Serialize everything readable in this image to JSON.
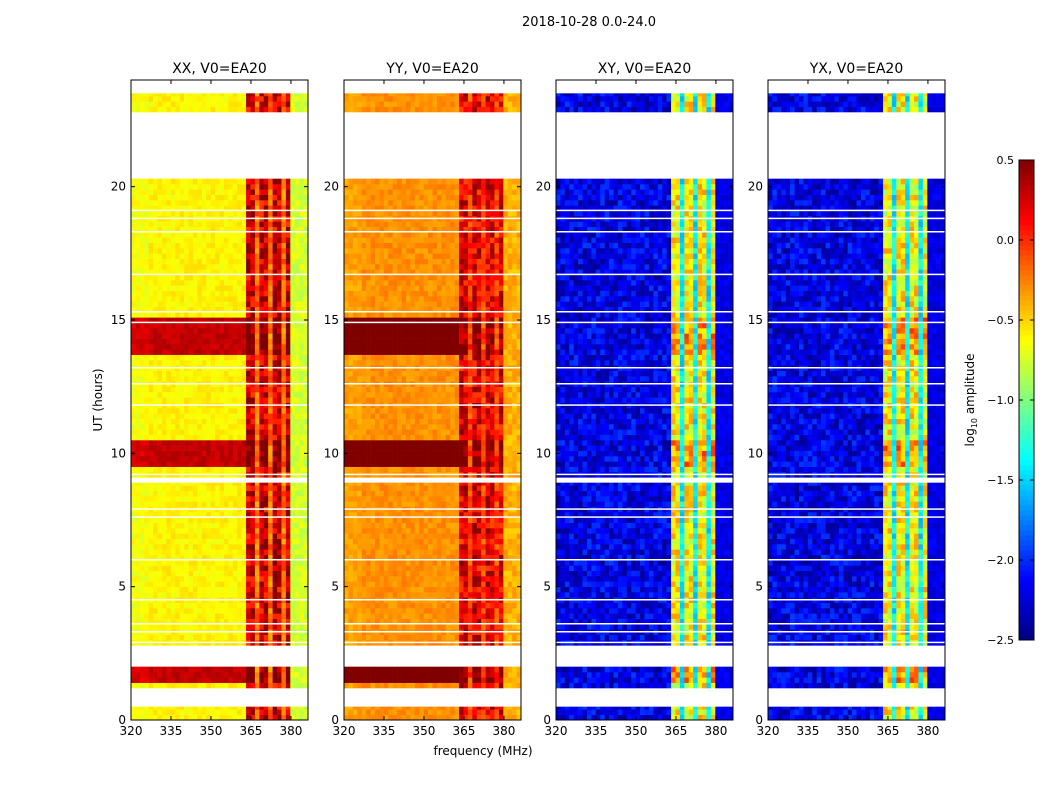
{
  "chart_data": {
    "type": "heatmap",
    "title": "2018-10-28 0.0-24.0",
    "xlabel": "frequency (MHz)",
    "ylabel": "UT (hours)",
    "xlim": [
      320,
      386.4
    ],
    "ylim": [
      0,
      24
    ],
    "xticks": [
      320,
      335,
      350,
      365,
      380
    ],
    "yticks": [
      0,
      5,
      10,
      15,
      20
    ],
    "colorbar": {
      "label": "log10 amplitude",
      "label_main": "log",
      "label_sub": "10",
      "label_rest": " amplitude",
      "colormap": "jet",
      "range": [
        -2.5,
        0.5
      ],
      "ticks": [
        "0.5",
        "0.0",
        "−0.5",
        "−1.0",
        "−1.5",
        "−2.0",
        "−2.5"
      ],
      "tick_values": [
        0.5,
        0.0,
        -0.5,
        -1.0,
        -1.5,
        -2.0,
        -2.5
      ]
    },
    "data_time_segments_hours": [
      [
        0.0,
        0.5
      ],
      [
        1.2,
        2.0
      ],
      [
        2.8,
        8.9
      ],
      [
        9.1,
        20.3
      ],
      [
        22.8,
        23.5
      ]
    ],
    "blank_rows_hours": [
      2.9,
      3.3,
      3.6,
      4.5,
      6.0,
      7.6,
      7.9,
      9.2,
      11.8,
      12.6,
      13.2,
      14.9,
      15.3,
      16.7,
      18.3,
      18.8,
      19.1
    ],
    "panels": [
      {
        "title": "XX, V0=EA20",
        "background": -0.6,
        "band": [
          363,
          380
        ],
        "band_level": 0.25,
        "band_gaps": [
          367.5,
          372.5,
          377.5
        ],
        "gap_level": -0.2,
        "edge_level": -0.75,
        "strong_hours": [
          [
            1.4,
            1.9
          ],
          [
            9.3,
            10.3
          ],
          [
            13.5,
            15.0
          ]
        ]
      },
      {
        "title": "YY, V0=EA20",
        "background": -0.3,
        "band": [
          363,
          380
        ],
        "band_level": 0.2,
        "band_gaps": [
          367.5,
          372.5,
          377.5
        ],
        "gap_level": -0.05,
        "edge_level": -0.4,
        "strong_hours": [
          [
            1.4,
            1.9
          ],
          [
            9.3,
            10.3
          ],
          [
            13.5,
            15.0
          ]
        ]
      },
      {
        "title": "XY, V0=EA20",
        "background": -2.2,
        "band": [
          363,
          380
        ],
        "band_level": -0.6,
        "band_gaps": [
          367.5,
          372.5,
          377.5
        ],
        "gap_level": -1.4,
        "edge_level": -2.2,
        "strong_hours": [
          [
            1.3,
            1.9
          ],
          [
            9.3,
            10.3
          ],
          [
            13.5,
            15.0
          ]
        ]
      },
      {
        "title": "YX, V0=EA20",
        "background": -2.2,
        "band": [
          363,
          380
        ],
        "band_level": -0.6,
        "band_gaps": [
          367.5,
          372.5,
          377.5
        ],
        "gap_level": -1.4,
        "edge_level": -2.2,
        "strong_hours": [
          [
            1.3,
            1.9
          ],
          [
            9.3,
            10.3
          ],
          [
            13.5,
            15.0
          ]
        ]
      }
    ]
  }
}
